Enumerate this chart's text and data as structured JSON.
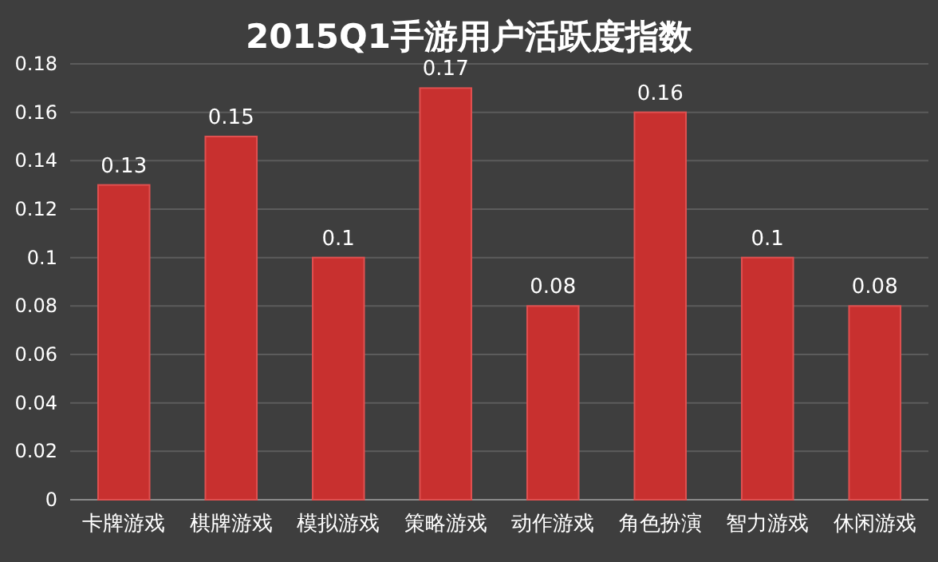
{
  "chart_data": {
    "type": "bar",
    "title": "2015Q1手游用户活跃度指数",
    "categories": [
      "卡牌游戏",
      "棋牌游戏",
      "模拟游戏",
      "策略游戏",
      "动作游戏",
      "角色扮演",
      "智力游戏",
      "休闲游戏"
    ],
    "values": [
      0.13,
      0.15,
      0.1,
      0.17,
      0.08,
      0.16,
      0.1,
      0.08
    ],
    "color": "#c8302f",
    "ylim": [
      0,
      0.18
    ],
    "yticks": [
      0,
      0.02,
      0.04,
      0.06,
      0.08,
      0.1,
      0.12,
      0.14,
      0.16,
      0.18
    ],
    "grid": "y",
    "data_labels": true
  }
}
